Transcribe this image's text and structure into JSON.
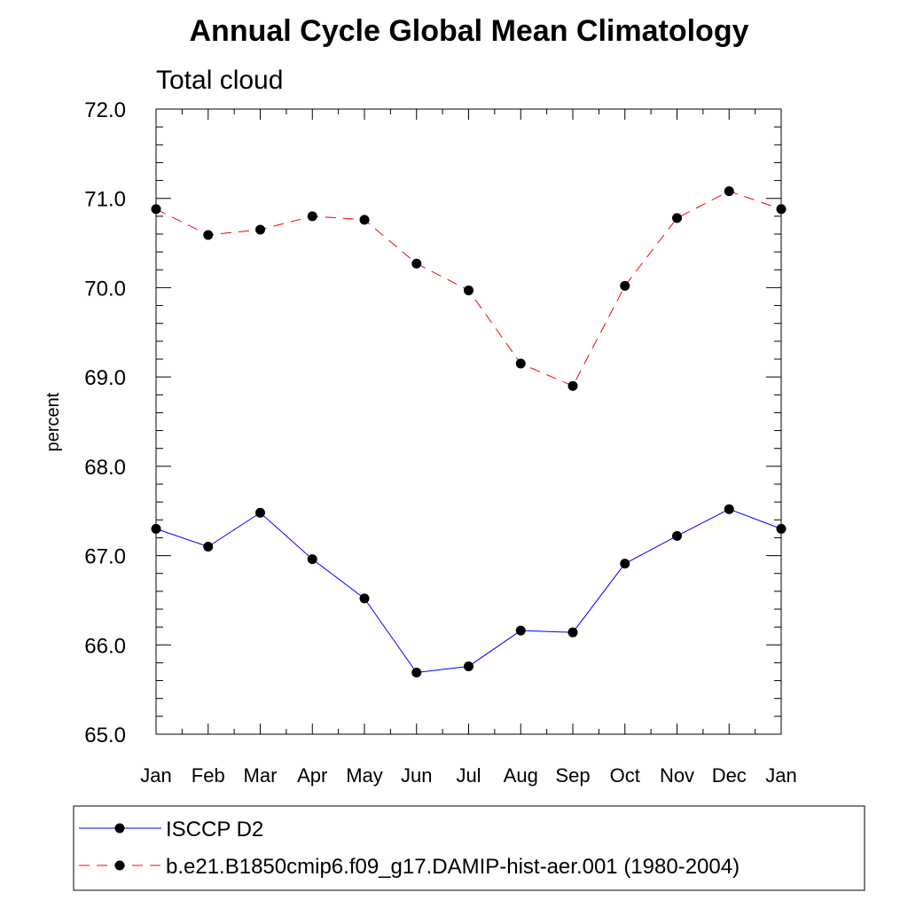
{
  "chart_data": {
    "type": "line",
    "title": "Annual Cycle Global Mean Climatology",
    "subtitle": "Total cloud",
    "xlabel": "",
    "ylabel": "percent",
    "categories": [
      "Jan",
      "Feb",
      "Mar",
      "Apr",
      "May",
      "Jun",
      "Jul",
      "Aug",
      "Sep",
      "Oct",
      "Nov",
      "Dec",
      "Jan"
    ],
    "ylim": [
      65.0,
      72.0
    ],
    "yticks": [
      "65.0",
      "66.0",
      "67.0",
      "68.0",
      "69.0",
      "70.0",
      "71.0",
      "72.0"
    ],
    "grid": false,
    "legend_position": "bottom",
    "series": [
      {
        "name": "ISCCP D2",
        "color": "#0000ff",
        "line_style": "solid",
        "marker": "filled-circle",
        "values": [
          67.3,
          67.1,
          67.48,
          66.96,
          66.52,
          65.69,
          65.76,
          66.16,
          66.14,
          66.91,
          67.22,
          67.52,
          67.3
        ]
      },
      {
        "name": "b.e21.B1850cmip6.f09_g17.DAMIP-hist-aer.001 (1980-2004)",
        "color": "#ff0000",
        "line_style": "dashed",
        "marker": "filled-circle",
        "values": [
          70.88,
          70.59,
          70.65,
          70.8,
          70.76,
          70.27,
          69.97,
          69.15,
          68.9,
          70.02,
          70.78,
          71.08,
          70.88
        ]
      }
    ]
  }
}
